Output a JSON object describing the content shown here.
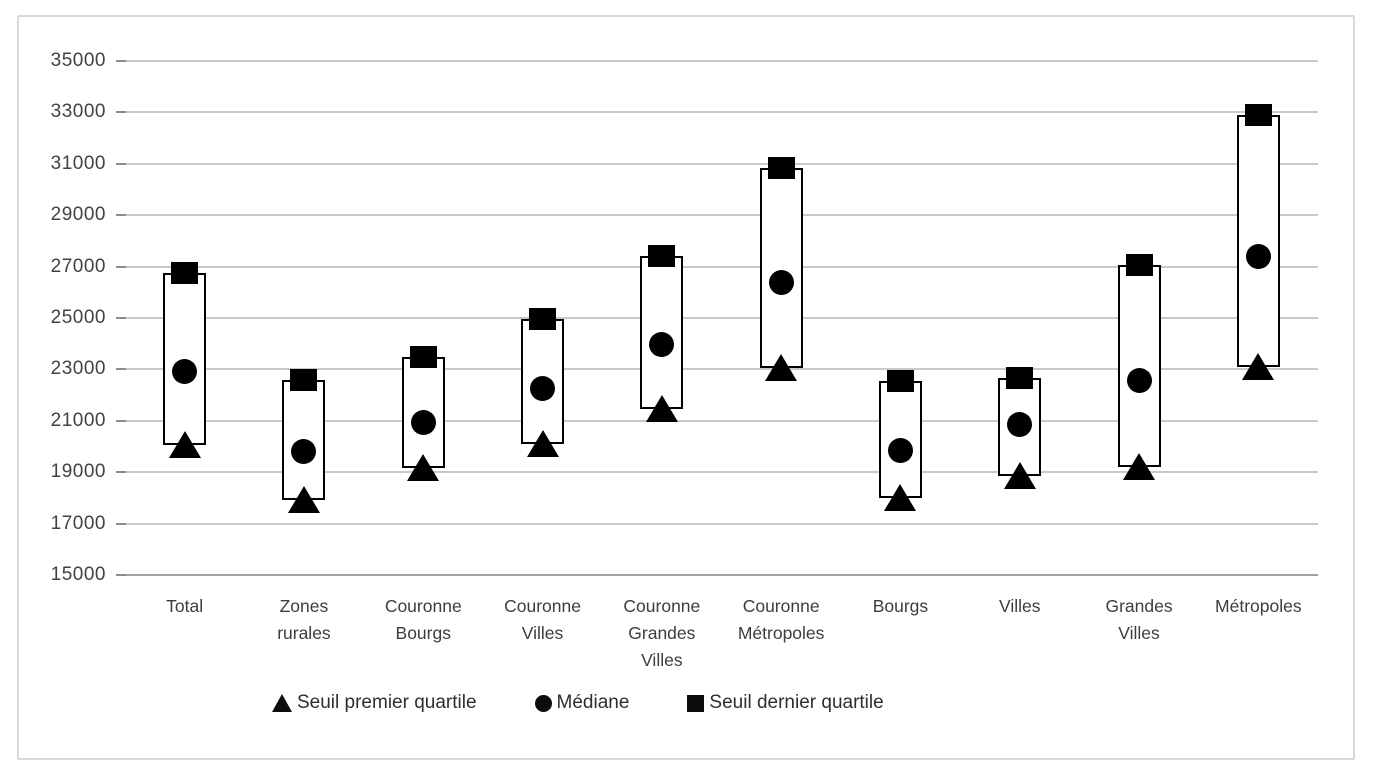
{
  "chart_data": {
    "type": "bar",
    "subtype": "floating-quartile-box-chart",
    "title": "",
    "xlabel": "",
    "ylabel": "",
    "ylim": [
      15000,
      35000
    ],
    "ytick_step": 2000,
    "ytick_labels": [
      "35000",
      "33000",
      "31000",
      "29000",
      "27000",
      "25000",
      "23000",
      "21000",
      "19000",
      "17000",
      "15000"
    ],
    "grid": true,
    "legend_position": "bottom",
    "categories": [
      "Total",
      "Zones rurales",
      "Couronne Bourgs",
      "Couronne Villes",
      "Couronne Grandes Villes",
      "Couronne Métropoles",
      "Bourgs",
      "Villes",
      "Grandes Villes",
      "Métropoles"
    ],
    "categories_wrapped": [
      [
        "Total"
      ],
      [
        "Zones",
        "rurales"
      ],
      [
        "Couronne",
        "Bourgs"
      ],
      [
        "Couronne",
        "Villes"
      ],
      [
        "Couronne",
        "Grandes",
        "Villes"
      ],
      [
        "Couronne",
        "Métropoles"
      ],
      [
        "Bourgs"
      ],
      [
        "Villes"
      ],
      [
        "Grandes",
        "Villes"
      ],
      [
        "Métropoles"
      ]
    ],
    "series": [
      {
        "name": "Seuil premier quartile",
        "marker": "triangle",
        "values": [
          20050,
          17900,
          19150,
          20100,
          21450,
          23050,
          18000,
          18850,
          19200,
          23100
        ]
      },
      {
        "name": "Médiane",
        "marker": "circle",
        "values": [
          22900,
          19800,
          20950,
          22250,
          23950,
          26400,
          19850,
          20850,
          22550,
          27400
        ]
      },
      {
        "name": "Seuil dernier quartile",
        "marker": "square",
        "values": [
          26750,
          22600,
          23500,
          24950,
          27400,
          30850,
          22550,
          22650,
          27050,
          32900
        ]
      }
    ]
  },
  "colors": {
    "marker": "#000000",
    "box_border": "#000000",
    "box_fill": "#ffffff",
    "gridline": "#c9c9c9",
    "axis_line": "#a3a3a3",
    "tick": "#8c8c8c",
    "text": "#3d3d3d",
    "frame_border": "#d9d9d9",
    "background": "#ffffff"
  }
}
